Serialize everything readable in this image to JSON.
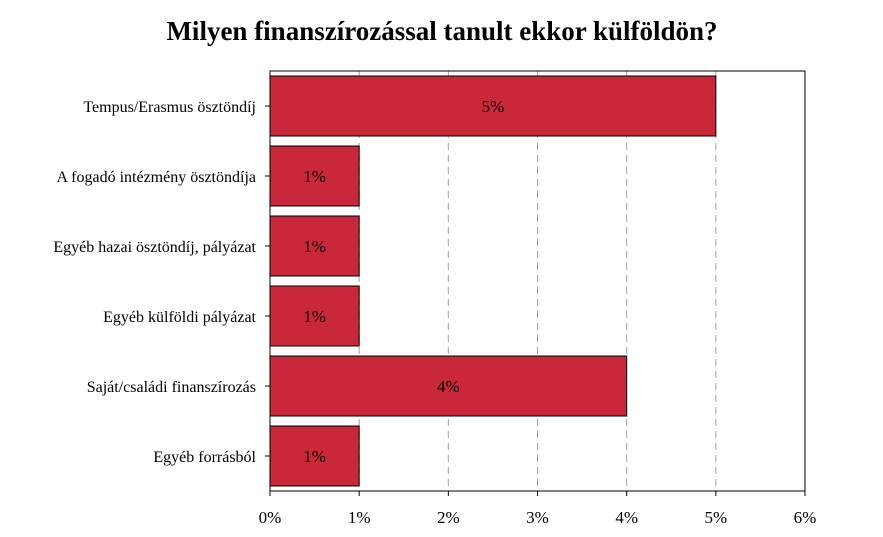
{
  "chart_data": {
    "type": "bar",
    "orientation": "horizontal",
    "title": "Milyen finanszírozással tanult ekkor külföldön?",
    "xlabel": "",
    "ylabel": "",
    "categories": [
      "Tempus/Erasmus ösztöndíj",
      "A fogadó intézmény ösztöndíja",
      "Egyéb hazai ösztöndíj, pályázat",
      "Egyéb külföldi pályázat",
      "Saját/családi finanszírozás",
      "Egyéb forrásból"
    ],
    "values": [
      5,
      1,
      1,
      1,
      4,
      1
    ],
    "data_labels": [
      "5%",
      "1%",
      "1%",
      "1%",
      "4%",
      "1%"
    ],
    "xlim": [
      0,
      6
    ],
    "x_ticks": [
      "0%",
      "1%",
      "2%",
      "3%",
      "4%",
      "5%",
      "6%"
    ],
    "grid": "vertical-dashed",
    "legend": "none",
    "bar_color": "#c8283a"
  }
}
